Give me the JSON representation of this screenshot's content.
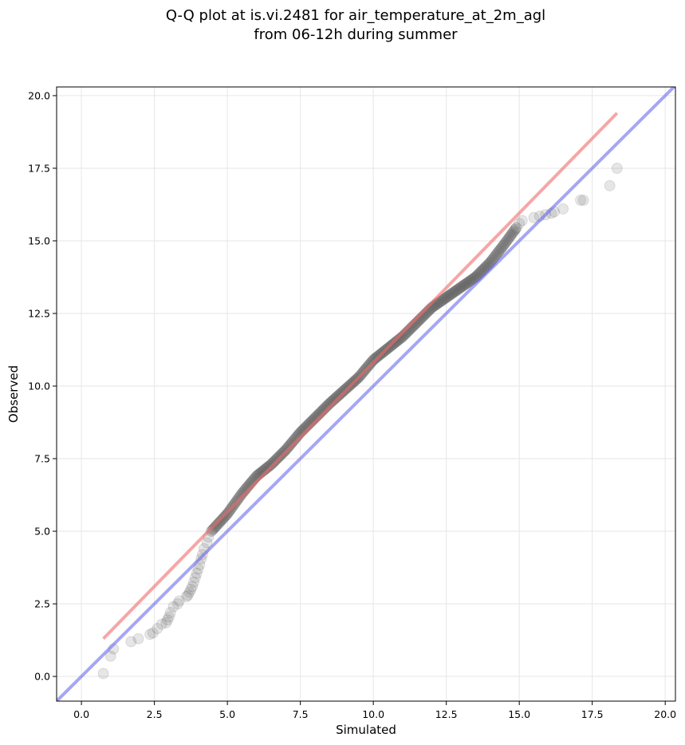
{
  "chart_data": {
    "type": "scatter",
    "title_lines": [
      "Q-Q plot at is.vi.2481 for air_temperature_at_2m_agl",
      "from 06-12h during summer"
    ],
    "xlabel": "Simulated",
    "ylabel": "Observed",
    "xlim": [
      -0.85,
      20.35
    ],
    "ylim": [
      -0.85,
      20.3
    ],
    "xticks": [
      0.0,
      2.5,
      5.0,
      7.5,
      10.0,
      12.5,
      15.0,
      17.5,
      20.0
    ],
    "xtick_labels": [
      "0.0",
      "2.5",
      "5.0",
      "7.5",
      "10.0",
      "12.5",
      "15.0",
      "17.5",
      "20.0"
    ],
    "yticks": [
      0.0,
      2.5,
      5.0,
      7.5,
      10.0,
      12.5,
      15.0,
      17.5,
      20.0
    ],
    "ytick_labels": [
      "0.0",
      "2.5",
      "5.0",
      "7.5",
      "10.0",
      "12.5",
      "15.0",
      "17.5",
      "20.0"
    ],
    "grid": true,
    "colors": {
      "points": "#555555",
      "fit_line": "#f06a6a",
      "identity_line": "#6b6bef",
      "grid": "#e6e6e6"
    },
    "fit_line": {
      "x": [
        0.75,
        18.35
      ],
      "y": [
        1.3,
        19.4
      ]
    },
    "identity_line": {
      "x": [
        -0.85,
        20.35
      ],
      "y": [
        -0.85,
        20.35
      ]
    },
    "points_tail": {
      "x": [
        0.75,
        1.0,
        1.1,
        1.7,
        1.95,
        2.35,
        2.45,
        2.6,
        2.75,
        2.9,
        2.95,
        3.0,
        3.05,
        3.15,
        3.3,
        3.35,
        3.6,
        3.65,
        3.7,
        3.75,
        3.8,
        3.85,
        3.9,
        3.95,
        4.0,
        4.05,
        4.1,
        4.15,
        4.2,
        4.3,
        4.35
      ],
      "y": [
        0.1,
        0.7,
        0.95,
        1.2,
        1.3,
        1.45,
        1.5,
        1.65,
        1.8,
        1.85,
        1.95,
        2.05,
        2.2,
        2.4,
        2.5,
        2.6,
        2.75,
        2.8,
        2.9,
        3.0,
        3.1,
        3.25,
        3.4,
        3.55,
        3.7,
        3.85,
        4.05,
        4.2,
        4.4,
        4.6,
        4.8
      ],
      "alpha": 0.15
    },
    "points_upper_tail": {
      "x": [
        15.0,
        15.1,
        15.5,
        15.7,
        15.9,
        16.1,
        16.2,
        16.5,
        17.1,
        17.2,
        18.1,
        18.35
      ],
      "y": [
        15.6,
        15.7,
        15.8,
        15.85,
        15.9,
        15.95,
        16.0,
        16.1,
        16.4,
        16.4,
        16.9,
        17.5
      ],
      "alpha": 0.15
    },
    "points_body": {
      "x_start": 4.45,
      "x_end": 14.9,
      "count": 260,
      "curve_x": [
        4.45,
        5.0,
        5.5,
        6.0,
        6.5,
        7.0,
        7.5,
        8.0,
        8.5,
        9.0,
        9.5,
        10.0,
        10.5,
        11.0,
        11.5,
        12.0,
        12.5,
        13.0,
        13.5,
        14.0,
        14.5,
        14.9
      ],
      "curve_y": [
        5.0,
        5.6,
        6.3,
        6.9,
        7.3,
        7.8,
        8.4,
        8.9,
        9.4,
        9.85,
        10.3,
        10.9,
        11.3,
        11.7,
        12.2,
        12.7,
        13.05,
        13.4,
        13.75,
        14.25,
        14.9,
        15.45
      ],
      "alpha": 0.22
    }
  }
}
